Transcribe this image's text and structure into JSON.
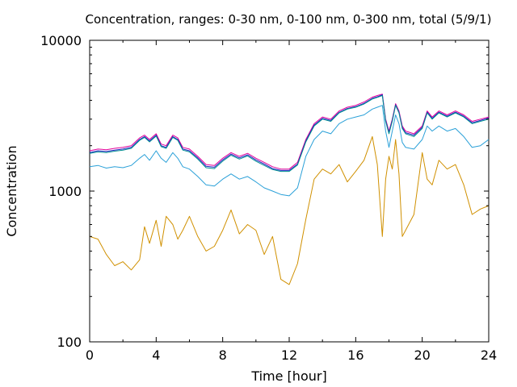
{
  "chart_data": {
    "type": "line",
    "title": "Concentration, ranges: 0-30 nm, 0-100 nm, 0-300 nm, total (5/9/1)",
    "xlabel": "Time [hour]",
    "ylabel": "Concentration",
    "xlim": [
      0,
      24
    ],
    "ylim": [
      100,
      10000
    ],
    "y_scale": "log",
    "grid": false,
    "x_ticks": [
      0,
      4,
      8,
      12,
      16,
      20,
      24
    ],
    "x_tick_labels": [
      "0",
      "4",
      "8",
      "12",
      "16",
      "20",
      "24"
    ],
    "y_ticks": [
      100,
      1000,
      10000
    ],
    "y_tick_labels": [
      "100",
      "1000",
      "10000"
    ],
    "x": [
      0,
      0.5,
      1,
      1.5,
      2,
      2.5,
      3,
      3.3,
      3.6,
      4,
      4.3,
      4.6,
      5,
      5.3,
      5.6,
      6,
      6.5,
      7,
      7.5,
      8,
      8.5,
      9,
      9.5,
      10,
      10.5,
      11,
      11.5,
      12,
      12.5,
      13,
      13.5,
      14,
      14.5,
      15,
      15.5,
      16,
      16.5,
      17,
      17.3,
      17.6,
      17.8,
      18,
      18.2,
      18.4,
      18.6,
      18.8,
      19,
      19.5,
      20,
      20.3,
      20.6,
      21,
      21.5,
      22,
      22.5,
      23,
      23.5,
      24
    ],
    "series": [
      {
        "color": "#e0009a",
        "values": [
          1850,
          1900,
          1880,
          1920,
          1950,
          2000,
          2250,
          2350,
          2200,
          2400,
          2050,
          2000,
          2350,
          2250,
          1950,
          1900,
          1700,
          1500,
          1480,
          1650,
          1800,
          1700,
          1780,
          1650,
          1550,
          1450,
          1400,
          1400,
          1550,
          2200,
          2800,
          3100,
          3000,
          3400,
          3600,
          3700,
          3900,
          4200,
          4300,
          4400,
          3000,
          2500,
          3000,
          3800,
          3400,
          2700,
          2500,
          2400,
          2700,
          3400,
          3100,
          3400,
          3200,
          3400,
          3200,
          2900,
          3000,
          3100
        ]
      },
      {
        "color": "#2020c0",
        "values": [
          1800,
          1850,
          1830,
          1870,
          1900,
          1950,
          2200,
          2300,
          2150,
          2350,
          2000,
          1950,
          2300,
          2200,
          1900,
          1850,
          1660,
          1460,
          1440,
          1610,
          1760,
          1660,
          1740,
          1610,
          1510,
          1410,
          1370,
          1370,
          1510,
          2150,
          2740,
          3040,
          2940,
          3330,
          3530,
          3630,
          3820,
          4120,
          4220,
          4350,
          2940,
          2440,
          2940,
          3740,
          3340,
          2640,
          2440,
          2350,
          2650,
          3340,
          3040,
          3340,
          3140,
          3340,
          3140,
          2840,
          2940,
          3050
        ]
      },
      {
        "color": "#009090",
        "values": [
          1780,
          1820,
          1800,
          1840,
          1870,
          1920,
          2170,
          2270,
          2120,
          2320,
          1970,
          1920,
          2270,
          2170,
          1870,
          1820,
          1630,
          1430,
          1410,
          1580,
          1730,
          1630,
          1710,
          1580,
          1480,
          1390,
          1350,
          1350,
          1490,
          2120,
          2700,
          3000,
          2900,
          3300,
          3500,
          3600,
          3780,
          4080,
          4180,
          4300,
          2900,
          2400,
          2900,
          3700,
          3300,
          2600,
          2400,
          2300,
          2600,
          3300,
          3000,
          3300,
          3100,
          3300,
          3100,
          2800,
          2900,
          3000
        ]
      },
      {
        "color": "#2aa0d8",
        "values": [
          1450,
          1480,
          1420,
          1450,
          1430,
          1480,
          1650,
          1750,
          1600,
          1850,
          1650,
          1550,
          1800,
          1650,
          1450,
          1400,
          1250,
          1100,
          1080,
          1200,
          1300,
          1200,
          1250,
          1150,
          1050,
          1000,
          950,
          930,
          1050,
          1700,
          2200,
          2500,
          2400,
          2800,
          3000,
          3100,
          3200,
          3500,
          3600,
          3700,
          2500,
          1950,
          2500,
          3200,
          2800,
          2100,
          1950,
          1900,
          2200,
          2700,
          2500,
          2700,
          2500,
          2600,
          2300,
          1950,
          2000,
          2200
        ]
      },
      {
        "color": "#d09000",
        "values": [
          500,
          480,
          380,
          320,
          340,
          300,
          350,
          580,
          450,
          640,
          430,
          680,
          600,
          480,
          550,
          680,
          500,
          400,
          430,
          550,
          750,
          520,
          600,
          550,
          380,
          500,
          260,
          240,
          330,
          650,
          1200,
          1400,
          1300,
          1500,
          1150,
          1350,
          1600,
          2300,
          1500,
          500,
          1200,
          1700,
          1400,
          2200,
          1300,
          500,
          550,
          700,
          1800,
          1200,
          1100,
          1600,
          1400,
          1500,
          1100,
          700,
          760,
          800
        ]
      }
    ]
  }
}
